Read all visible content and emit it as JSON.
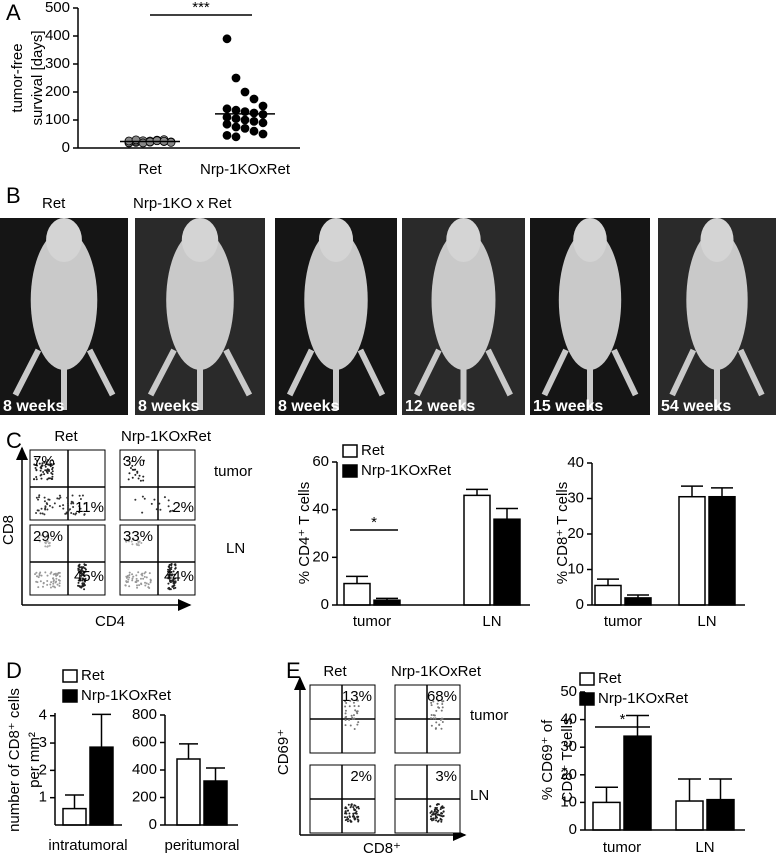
{
  "panel_letters": [
    "A",
    "B",
    "C",
    "D",
    "E"
  ],
  "photos": {
    "group_labels": [
      "Ret",
      "Nrp-1KO x Ret"
    ],
    "ages": [
      "8 weeks",
      "8 weeks",
      "8 weeks",
      "12 weeks",
      "15 weeks",
      "54 weeks"
    ]
  },
  "flow_c": {
    "columns": [
      "Ret",
      "Nrp-1KOxRet"
    ],
    "rows": [
      "tumor",
      "LN"
    ],
    "x_label": "CD4",
    "y_label": "CD8",
    "plots": [
      [
        [
          "7%",
          "11%"
        ],
        [
          "3%",
          "2%"
        ]
      ],
      [
        [
          "29%",
          "45%"
        ],
        [
          "33%",
          "44%"
        ]
      ]
    ]
  },
  "flow_e": {
    "columns": [
      "Ret",
      "Nrp-1KOxRet"
    ],
    "rows": [
      "tumor",
      "LN"
    ],
    "x_label": "CD8⁺",
    "y_label": "CD69⁺",
    "plots": [
      [
        [
          "13%"
        ],
        [
          "68%"
        ]
      ],
      [
        [
          "2%"
        ],
        [
          "3%"
        ]
      ]
    ]
  },
  "chart_data": [
    {
      "type": "dot",
      "y_label": [
        "tumor-free",
        "survival [days]"
      ],
      "categories": [
        "Ret",
        "Nrp-1KOxRet"
      ],
      "groups": [
        {
          "color": "#888888",
          "values": [
            18,
            20,
            22,
            25,
            28,
            30,
            22,
            19,
            24,
            26,
            21,
            27,
            23,
            20,
            25,
            29,
            18,
            22,
            26,
            24
          ],
          "mean": 23
        },
        {
          "color": "#000000",
          "values": [
            390,
            250,
            200,
            175,
            150,
            140,
            135,
            130,
            125,
            120,
            110,
            105,
            100,
            95,
            90,
            85,
            75,
            70,
            60,
            50,
            45,
            40
          ],
          "mean": 122
        }
      ],
      "ylim": [
        0,
        500
      ],
      "yticks": [
        0,
        100,
        200,
        300,
        400,
        500
      ],
      "significance": "***"
    },
    {
      "type": "bar",
      "y_label": "% CD4⁺ T cells",
      "categories": [
        "tumor",
        "LN"
      ],
      "series": [
        {
          "name": "Ret",
          "color": "#ffffff",
          "values": [
            9,
            46
          ],
          "errors": [
            3,
            2.5
          ]
        },
        {
          "name": "Nrp-1KOxRet",
          "color": "#000000",
          "values": [
            2,
            36
          ],
          "errors": [
            0.8,
            4.5
          ]
        }
      ],
      "ylim": [
        0,
        60
      ],
      "yticks": [
        0,
        20,
        40,
        60
      ],
      "significance": "*"
    },
    {
      "type": "bar",
      "y_label": "% CD8⁺ T cells",
      "categories": [
        "tumor",
        "LN"
      ],
      "series": [
        {
          "color": "#ffffff",
          "values": [
            5.5,
            30.5
          ],
          "errors": [
            1.8,
            3
          ]
        },
        {
          "color": "#000000",
          "values": [
            2,
            30.5
          ],
          "errors": [
            0.8,
            2.5
          ]
        }
      ],
      "ylim": [
        0,
        40
      ],
      "yticks": [
        0,
        10,
        20,
        30,
        40
      ]
    },
    {
      "type": "bar",
      "y_label": [
        "number of CD8⁺ cells",
        "per mm²"
      ],
      "categories": [
        "intratumoral"
      ],
      "series": [
        {
          "name": "Ret",
          "color": "#ffffff",
          "values": [
            0.6
          ],
          "errors": [
            0.5
          ]
        },
        {
          "name": "Nrp-1KOxRet",
          "color": "#000000",
          "values": [
            2.85
          ],
          "errors": [
            1.2
          ]
        }
      ],
      "ylim": [
        0,
        4.1
      ],
      "yticks": [
        1,
        2,
        3,
        4
      ]
    },
    {
      "type": "bar",
      "categories": [
        "peritumoral"
      ],
      "series": [
        {
          "color": "#ffffff",
          "values": [
            480
          ],
          "errors": [
            110
          ]
        },
        {
          "color": "#000000",
          "values": [
            320
          ],
          "errors": [
            95
          ]
        }
      ],
      "ylim": [
        0,
        800
      ],
      "yticks": [
        0,
        200,
        400,
        600,
        800
      ]
    },
    {
      "type": "bar",
      "y_label": [
        "% CD69⁺ of",
        "CD8⁺ T cells"
      ],
      "categories": [
        "tumor",
        "LN"
      ],
      "series": [
        {
          "name": "Ret",
          "color": "#ffffff",
          "values": [
            10,
            10.5
          ],
          "errors": [
            5.5,
            8
          ]
        },
        {
          "name": "Nrp-1KOxRet",
          "color": "#000000",
          "values": [
            34,
            11
          ],
          "errors": [
            7.5,
            7.5
          ]
        }
      ],
      "ylim": [
        0,
        50
      ],
      "yticks": [
        0,
        10,
        20,
        30,
        40,
        50
      ],
      "significance": "*"
    }
  ]
}
